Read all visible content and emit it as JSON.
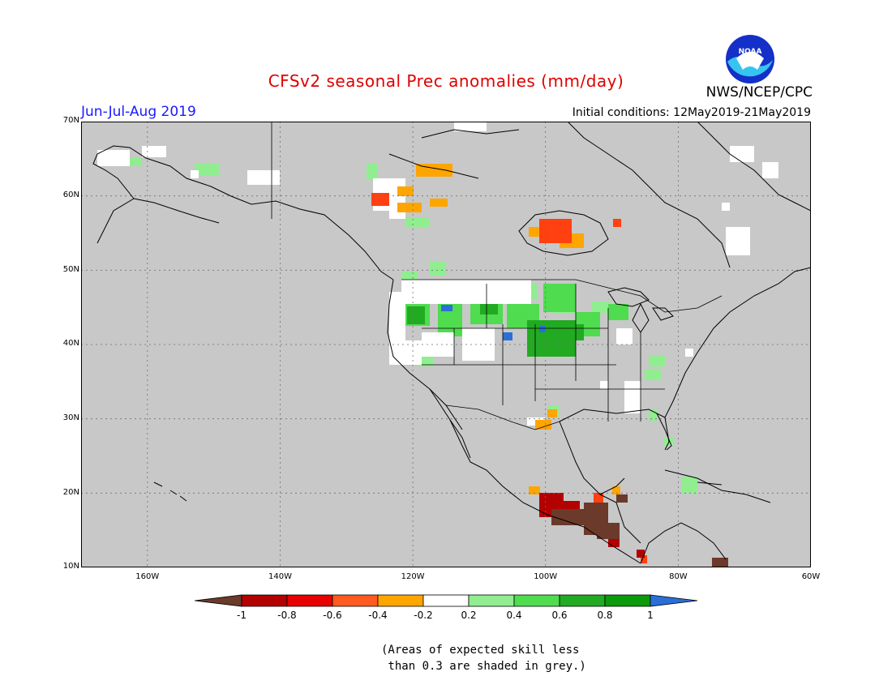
{
  "title": "CFSv2 seasonal Prec anomalies (mm/day)",
  "period": "Jun-Jul-Aug 2019",
  "initial_conditions": "Initial conditions: 12May2019-21May2019",
  "agency": "NWS/NCEP/CPC",
  "logo_text": "NOAA",
  "lat_labels": [
    "70N",
    "60N",
    "50N",
    "40N",
    "30N",
    "20N",
    "10N"
  ],
  "lon_labels": [
    "160W",
    "140W",
    "120W",
    "100W",
    "80W",
    "60W"
  ],
  "colorbar": {
    "labels": [
      "-1",
      "-0.8",
      "-0.6",
      "-0.4",
      "-0.2",
      "0.2",
      "0.4",
      "0.6",
      "0.8",
      "1"
    ],
    "colors": [
      "#6b3a2a",
      "#b30000",
      "#e60000",
      "#ff5a1f",
      "#ffa500",
      "#ffffff",
      "#90ee90",
      "#4fdc4f",
      "#22aa22",
      "#0b9a0b",
      "#2a6fd6"
    ]
  },
  "footnote": "(Areas of expected skill less\n than 0.3 are shaded in grey.)",
  "map_colors": {
    "background": "#c8c8c8",
    "coast": "#000000",
    "grid": "#707070"
  }
}
